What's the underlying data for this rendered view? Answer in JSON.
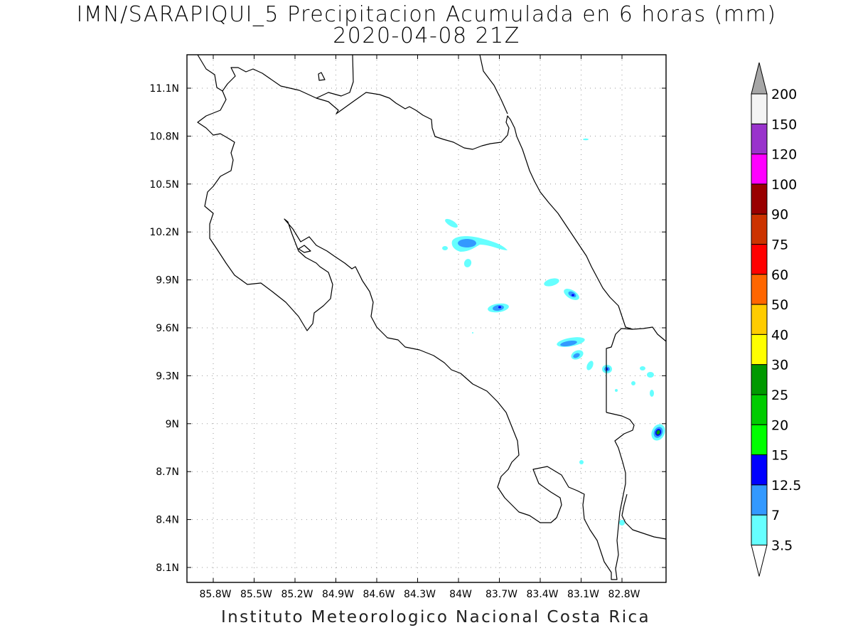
{
  "title": {
    "line1": "IMN/SARAPIQUI_5 Precipitacion Acumulada en 6 horas (mm)",
    "line2": "2020-04-08 21Z"
  },
  "footer": "Instituto Meteorologico Nacional Costa Rica",
  "axes": {
    "lon_labels": [
      "85.8W",
      "85.5W",
      "85.2W",
      "84.9W",
      "84.6W",
      "84.3W",
      "84W",
      "83.7W",
      "83.4W",
      "83.1W",
      "82.8W"
    ],
    "lat_labels": [
      "11.1N",
      "10.8N",
      "10.5N",
      "10.2N",
      "9.9N",
      "9.6N",
      "9.3N",
      "9N",
      "8.7N",
      "8.4N",
      "8.1N"
    ]
  },
  "colorbar": {
    "levels": [
      "200",
      "150",
      "120",
      "100",
      "90",
      "75",
      "60",
      "50",
      "40",
      "30",
      "25",
      "20",
      "15",
      "12.5",
      "7",
      "3.5"
    ],
    "colors": [
      "#f4f4f4",
      "#9933cc",
      "#ff00ff",
      "#990000",
      "#cc3300",
      "#ff0000",
      "#ff6600",
      "#ffcc00",
      "#ffff00",
      "#009900",
      "#00cc00",
      "#00ff00",
      "#0000ff",
      "#3399ff",
      "#66ffff"
    ],
    "over_color": "#a6a6a6",
    "under_color": "#ffffff"
  }
}
